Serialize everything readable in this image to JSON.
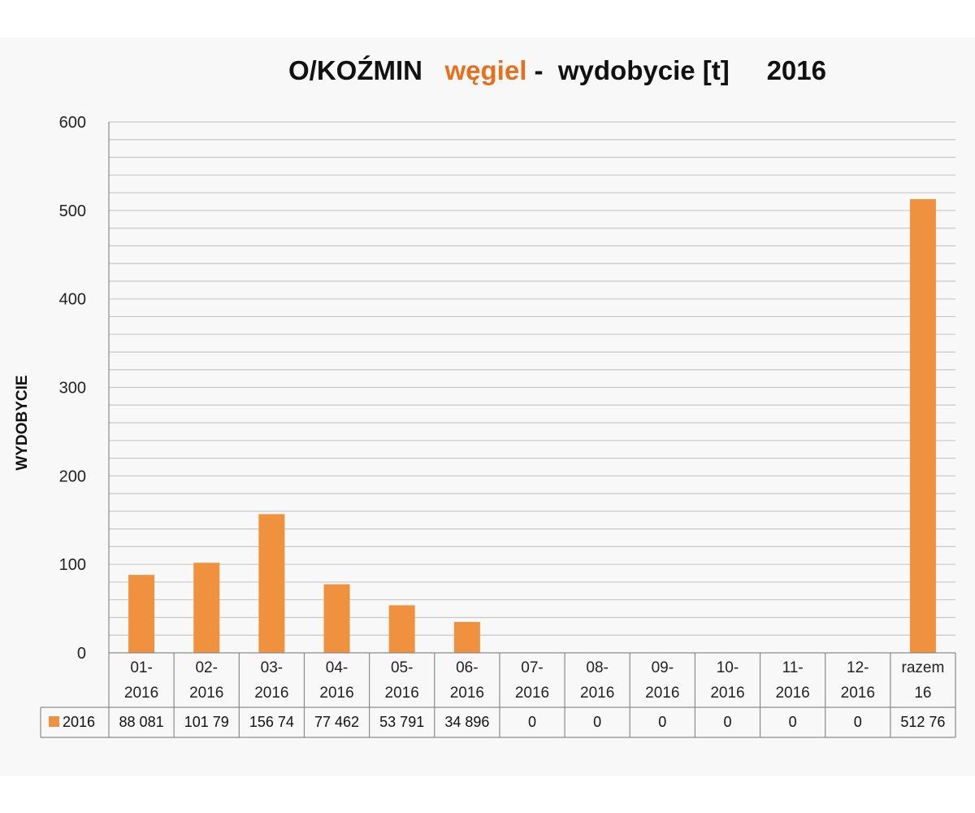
{
  "title": {
    "part1": "O/KOŹMIN",
    "part2": "węgiel",
    "part3": "-  wydobycie [t]",
    "part4": "2016"
  },
  "colors": {
    "bar": "#f0913f",
    "title_accent": "#e86f1f",
    "grid": "#c8c8c8",
    "axis": "#8a8a8a",
    "panel": "#f8f8f8"
  },
  "chart_data": {
    "type": "bar",
    "title": "O/KOŹMIN węgiel - wydobycie [t] 2016",
    "xlabel": "",
    "ylabel": "WYDOBYCIE",
    "ylim": [
      0,
      600
    ],
    "yticks": [
      0,
      100,
      200,
      300,
      400,
      500,
      600
    ],
    "minor_gridlines_per_major": 5,
    "grid": true,
    "legend": "data-table",
    "categories": [
      [
        "01-",
        "2016"
      ],
      [
        "02-",
        "2016"
      ],
      [
        "03-",
        "2016"
      ],
      [
        "04-",
        "2016"
      ],
      [
        "05-",
        "2016"
      ],
      [
        "06-",
        "2016"
      ],
      [
        "07-",
        "2016"
      ],
      [
        "08-",
        "2016"
      ],
      [
        "09-",
        "2016"
      ],
      [
        "10-",
        "2016"
      ],
      [
        "11-",
        "2016"
      ],
      [
        "12-",
        "2016"
      ],
      [
        "razem",
        "16"
      ]
    ],
    "series": [
      {
        "name": "2016",
        "values": [
          88.081,
          101.79,
          156.74,
          77.462,
          53.791,
          34.896,
          0,
          0,
          0,
          0,
          0,
          0,
          512.76
        ],
        "table_labels": [
          "88 081",
          "101 79",
          "156 74",
          "77 462",
          "53 791",
          "34 896",
          "0",
          "0",
          "0",
          "0",
          "0",
          "0",
          "512 76"
        ]
      }
    ]
  }
}
